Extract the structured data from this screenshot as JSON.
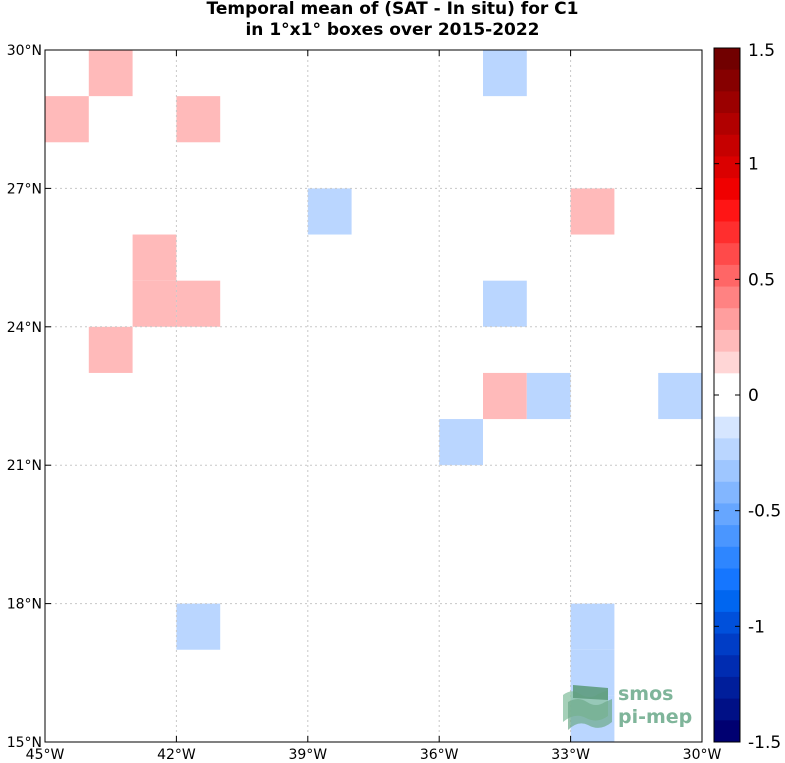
{
  "chart_data": {
    "type": "heatmap",
    "title_line1": "Temporal mean of (SAT - In situ) for C1",
    "title_line2": "in 1°x1° boxes over 2015-2022",
    "xlim": [
      -45,
      -30
    ],
    "ylim": [
      15,
      30
    ],
    "x_ticks": [
      {
        "value": -45,
        "label": "45°W"
      },
      {
        "value": -42,
        "label": "42°W"
      },
      {
        "value": -39,
        "label": "39°W"
      },
      {
        "value": -36,
        "label": "36°W"
      },
      {
        "value": -33,
        "label": "33°W"
      },
      {
        "value": -30,
        "label": "30°W"
      }
    ],
    "y_ticks": [
      {
        "value": 15,
        "label": "15°N"
      },
      {
        "value": 18,
        "label": "18°N"
      },
      {
        "value": 21,
        "label": "21°N"
      },
      {
        "value": 24,
        "label": "24°N"
      },
      {
        "value": 27,
        "label": "27°N"
      },
      {
        "value": 30,
        "label": "30°N"
      }
    ],
    "grid": true,
    "colorbar": {
      "range": [
        -1.5,
        1.5
      ],
      "levels": 32,
      "tick_values": [
        1.5,
        1,
        0.5,
        0,
        -0.5,
        -1,
        -1.5
      ],
      "tick_labels": [
        "1.5",
        "1",
        "0.5",
        "0",
        "-0.5",
        "-1",
        "-1.5"
      ],
      "colors": [
        "#710000",
        "#860000",
        "#9b0000",
        "#b10000",
        "#c60000",
        "#db0000",
        "#f00000",
        "#ff1515",
        "#ff2e2e",
        "#ff4a4a",
        "#ff6666",
        "#ff8282",
        "#ff9e9e",
        "#ffbaba",
        "#ffd6d6",
        "#ffffff",
        "#ffffff",
        "#d6e6ff",
        "#bad6ff",
        "#9ec6ff",
        "#82b6ff",
        "#66a6ff",
        "#4a96ff",
        "#2e86ff",
        "#1576ff",
        "#0066f0",
        "#0050db",
        "#003dc6",
        "#002cb1",
        "#001e9b",
        "#001086",
        "#000071"
      ]
    },
    "cells": [
      {
        "lon": -44,
        "lat": 29,
        "value": 0.2
      },
      {
        "lon": -45,
        "lat": 28,
        "value": 0.2
      },
      {
        "lon": -42,
        "lat": 28,
        "value": 0.2
      },
      {
        "lon": -35,
        "lat": 29,
        "value": -0.2
      },
      {
        "lon": -39,
        "lat": 26,
        "value": -0.2
      },
      {
        "lon": -33,
        "lat": 26,
        "value": 0.2
      },
      {
        "lon": -43,
        "lat": 25,
        "value": 0.2
      },
      {
        "lon": -43,
        "lat": 24,
        "value": 0.2
      },
      {
        "lon": -42,
        "lat": 24,
        "value": 0.2
      },
      {
        "lon": -35,
        "lat": 24,
        "value": -0.2
      },
      {
        "lon": -44,
        "lat": 23,
        "value": 0.2
      },
      {
        "lon": -35,
        "lat": 22,
        "value": 0.2
      },
      {
        "lon": -34,
        "lat": 22,
        "value": -0.2
      },
      {
        "lon": -31,
        "lat": 22,
        "value": -0.2
      },
      {
        "lon": -36,
        "lat": 21,
        "value": -0.2
      },
      {
        "lon": -42,
        "lat": 17,
        "value": -0.2
      },
      {
        "lon": -33,
        "lat": 17,
        "value": -0.2
      },
      {
        "lon": -33,
        "lat": 16,
        "value": -0.2
      },
      {
        "lon": -33,
        "lat": 15,
        "value": -0.2
      }
    ]
  },
  "logo": {
    "line1": "smos",
    "line2": "pi-mep",
    "color": "#7fb59a"
  }
}
